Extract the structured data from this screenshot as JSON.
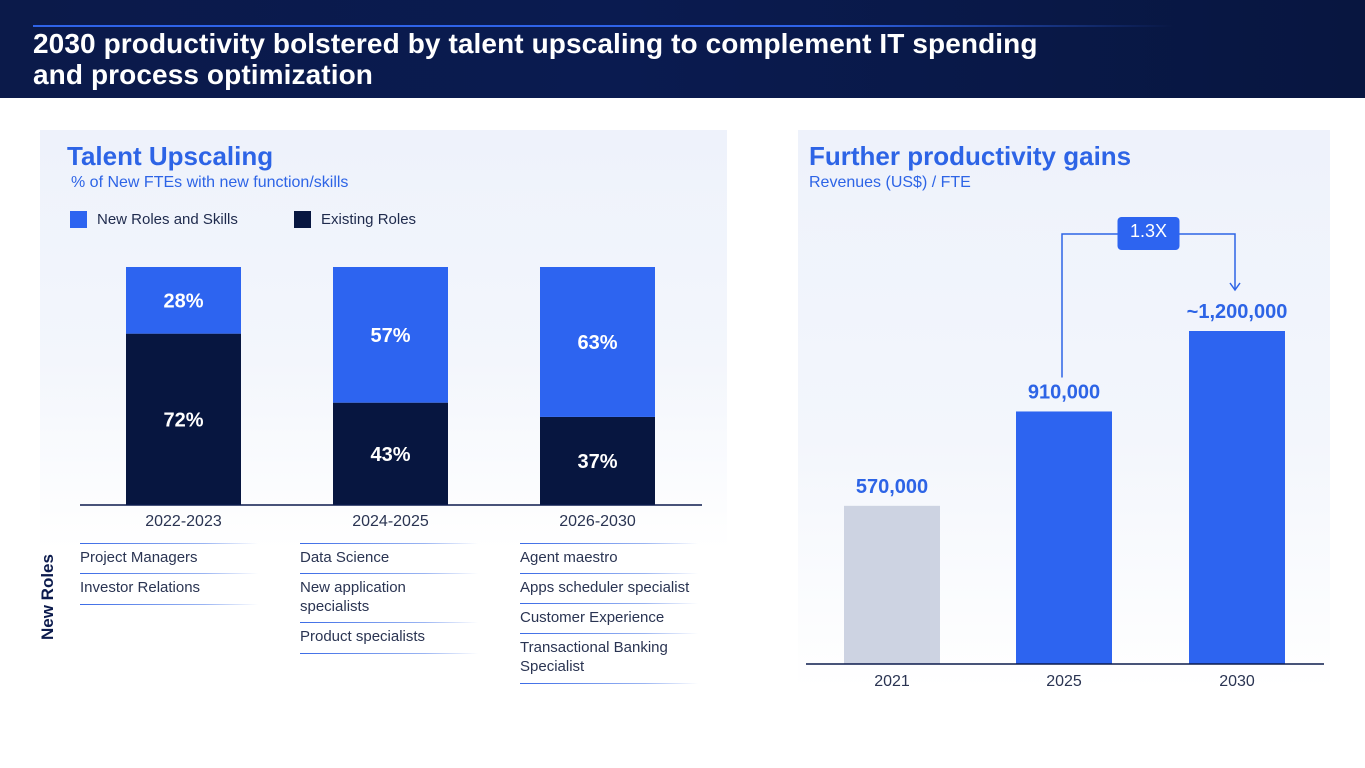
{
  "header": {
    "title_line1": "2030 productivity bolstered by talent upscaling to complement IT spending",
    "title_line2": "and process optimization"
  },
  "left_panel": {
    "title": "Talent Upscaling",
    "subtitle": "% of New FTEs with new function/skills",
    "legend": [
      {
        "label": "New Roles and Skills",
        "color": "#2d64f0"
      },
      {
        "label": "Existing Roles",
        "color": "#071640"
      }
    ]
  },
  "right_panel": {
    "title": "Further productivity gains",
    "subtitle": "Revenues (US$) / FTE",
    "multiplier_badge": "1.3X"
  },
  "chart_data": [
    {
      "type": "bar",
      "stacked": true,
      "title": "Talent Upscaling",
      "subtitle": "% of New FTEs with new function/skills",
      "categories": [
        "2022-2023",
        "2024-2025",
        "2026-2030"
      ],
      "series": [
        {
          "name": "Existing Roles",
          "color": "#071640",
          "values": [
            72,
            43,
            37
          ],
          "labels": [
            "72%",
            "43%",
            "37%"
          ]
        },
        {
          "name": "New Roles and Skills",
          "color": "#2d64f0",
          "values": [
            28,
            57,
            63
          ],
          "labels": [
            "28%",
            "57%",
            "63%"
          ]
        }
      ],
      "ylim": [
        0,
        100
      ]
    },
    {
      "type": "bar",
      "title": "Further productivity gains",
      "ylabel": "Revenues (US$) / FTE",
      "categories": [
        "2021",
        "2025",
        "2030"
      ],
      "values": [
        570000,
        910000,
        1200000
      ],
      "labels": [
        "570,000",
        "910,000",
        "~1,200,000"
      ],
      "colors": [
        "#cdd3e2",
        "#2d64f0",
        "#2d64f0"
      ],
      "ylim": [
        0,
        1200000
      ],
      "annotation": {
        "text": "1.3X",
        "from": "2025",
        "to": "2030"
      }
    }
  ],
  "new_roles": {
    "label": "New Roles",
    "columns": [
      {
        "period": "2022-2023",
        "items": [
          "Project Managers",
          "Investor Relations"
        ]
      },
      {
        "period": "2024-2025",
        "items": [
          "Data Science",
          "New application specialists",
          "Product specialists"
        ]
      },
      {
        "period": "2026-2030",
        "items": [
          "Agent maestro",
          "Apps scheduler specialist",
          "Customer Experience",
          "Transactional Banking Specialist"
        ]
      }
    ]
  }
}
